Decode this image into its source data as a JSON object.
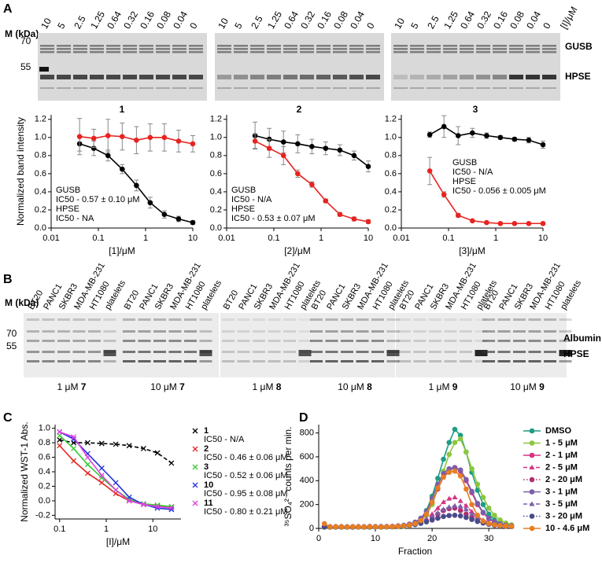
{
  "panel_labels": [
    "A",
    "B",
    "C",
    "D"
  ],
  "gel_A": {
    "marker_title": "M (kDa)",
    "markers": [
      "70",
      "55"
    ],
    "concentrations": [
      "10",
      "5",
      "2.5",
      "1.25",
      "0.64",
      "0.32",
      "0.16",
      "0.08",
      "0.04",
      "0"
    ],
    "unit": "[I]/μM",
    "bands": [
      "GUSB",
      "HPSE"
    ],
    "compounds": [
      "1",
      "2",
      "3"
    ]
  },
  "gel_B": {
    "marker_title": "M (kDa)",
    "markers": [
      "70",
      "55"
    ],
    "lanes": [
      "BT20",
      "PANC1",
      "SKBR3",
      "MDA-MB-231",
      "HT1080",
      "platelets"
    ],
    "bands": [
      "Albumin",
      "HPSE"
    ],
    "captions": [
      {
        "dose": "1 μM",
        "compound": "7"
      },
      {
        "dose": "10 μM",
        "compound": "7"
      },
      {
        "dose": "1 μM",
        "compound": "8"
      },
      {
        "dose": "10 μM",
        "compound": "8"
      },
      {
        "dose": "1 μM",
        "compound": "9"
      },
      {
        "dose": "10 μM",
        "compound": "9"
      }
    ]
  },
  "chart_data": [
    {
      "type": "line",
      "y_label": "Normalized band intensity",
      "x_label": "[1]/μM",
      "xlog": true,
      "xlim": [
        0.01,
        10
      ],
      "xticks": [
        0.01,
        0.1,
        1,
        10
      ],
      "ylim": [
        0,
        1.25
      ],
      "yticks": [
        {
          "value": 0,
          "label": "0.0"
        },
        0.2,
        0.4,
        0.6,
        0.8,
        {
          "value": 1,
          "label": "1.0"
        },
        1.2
      ],
      "legend": "lower left",
      "x": [
        0.04,
        0.08,
        0.16,
        0.32,
        0.64,
        1.25,
        2.5,
        5,
        10
      ],
      "series": [
        {
          "name": "GUSB",
          "label": "IC50 - 0.57 ± 0.10 μM",
          "color": "#000000",
          "marker": "circle",
          "values": [
            0.93,
            0.88,
            0.8,
            0.65,
            0.47,
            0.28,
            0.15,
            0.1,
            0.06
          ],
          "errors": [
            0.08,
            0.08,
            0.06,
            0.05,
            0.06,
            0.06,
            0.04,
            0.03,
            0.02
          ]
        },
        {
          "name": "HPSE",
          "label": "IC50 - NA",
          "color": "#e8231f",
          "marker": "circle",
          "values": [
            1.01,
            0.99,
            1.02,
            1.01,
            0.97,
            1.0,
            1.0,
            0.96,
            0.93
          ],
          "errors": [
            0.2,
            0.1,
            0.18,
            0.15,
            0.15,
            0.15,
            0.15,
            0.12,
            0.09
          ]
        }
      ]
    },
    {
      "type": "line",
      "x_label": "[2]/μM",
      "xlog": true,
      "xlim": [
        0.01,
        10
      ],
      "xticks": [
        0.01,
        0.1,
        1,
        10
      ],
      "ylim": [
        0,
        1.25
      ],
      "yticks": [
        {
          "value": 0,
          "label": "0.0"
        },
        0.2,
        0.4,
        0.6,
        0.8,
        {
          "value": 1,
          "label": "1.0"
        },
        1.2
      ],
      "legend": "lower left",
      "x": [
        0.04,
        0.08,
        0.16,
        0.32,
        0.64,
        1.25,
        2.5,
        5,
        10
      ],
      "series": [
        {
          "name": "GUSB",
          "label": "IC50 - N/A",
          "color": "#000000",
          "marker": "circle",
          "values": [
            1.02,
            0.98,
            0.95,
            0.93,
            0.9,
            0.88,
            0.86,
            0.8,
            0.68
          ],
          "errors": [
            0.15,
            0.12,
            0.12,
            0.1,
            0.08,
            0.07,
            0.06,
            0.05,
            0.06
          ]
        },
        {
          "name": "HPSE",
          "label": "IC50 - 0.53 ± 0.07 μM",
          "color": "#e8231f",
          "marker": "circle",
          "values": [
            0.96,
            0.88,
            0.8,
            0.6,
            0.48,
            0.3,
            0.15,
            0.1,
            0.07
          ],
          "errors": [
            0.08,
            0.1,
            0.1,
            0.04,
            0.03,
            0.02,
            0.02,
            0.02,
            0.02
          ]
        }
      ]
    },
    {
      "type": "line",
      "x_label": "[3]/μM",
      "xlog": true,
      "xlim": [
        0.01,
        10
      ],
      "xticks": [
        0.01,
        0.1,
        1,
        10
      ],
      "ylim": [
        0,
        1.25
      ],
      "yticks": [
        {
          "value": 0,
          "label": "0.0"
        },
        0.2,
        0.4,
        0.6,
        0.8,
        {
          "value": 1,
          "label": "1.0"
        },
        1.2
      ],
      "legend": "center right",
      "x": [
        0.04,
        0.08,
        0.16,
        0.32,
        0.64,
        1.25,
        2.5,
        5,
        10
      ],
      "series": [
        {
          "name": "GUSB",
          "label": "IC50 - N/A",
          "color": "#000000",
          "marker": "circle",
          "values": [
            1.03,
            1.12,
            1.02,
            1.05,
            1.02,
            1.0,
            0.98,
            0.97,
            0.92
          ],
          "errors": [
            0.03,
            0.12,
            0.1,
            0.05,
            0.03,
            0.02,
            0.02,
            0.03,
            0.04
          ]
        },
        {
          "name": "HPSE",
          "label": "IC50 - 0.056 ± 0.005 μM",
          "color": "#e8231f",
          "marker": "circle",
          "values": [
            0.63,
            0.37,
            0.14,
            0.08,
            0.06,
            0.05,
            0.05,
            0.05,
            0.05
          ],
          "errors": [
            0.15,
            0.03,
            0.02,
            0.01,
            0.01,
            0.01,
            0.01,
            0.01,
            0.01
          ]
        }
      ]
    },
    {
      "type": "line",
      "y_label": "Normalized WST-1 Abs.",
      "x_label": "[I]/μM",
      "xlog": true,
      "xlim": [
        0.08,
        40
      ],
      "xticks": [
        0.1,
        1,
        10
      ],
      "ylim": [
        -0.25,
        1.05
      ],
      "yticks": [
        -0.2,
        {
          "value": 0,
          "label": "0.0"
        },
        0.2,
        0.4,
        0.6,
        0.8,
        {
          "value": 1,
          "label": "1.0"
        }
      ],
      "legend": "outside right",
      "x": [
        0.1,
        0.2,
        0.4,
        0.8,
        1.6,
        3.1,
        6.3,
        12.5,
        25
      ],
      "series": [
        {
          "name": "1",
          "label": "IC50 - N/A",
          "color": "#000000",
          "marker": "cross",
          "dash": "dashed",
          "values": [
            0.84,
            0.8,
            0.8,
            0.79,
            0.78,
            0.76,
            0.72,
            0.66,
            0.52
          ]
        },
        {
          "name": "2",
          "label": "IC50 - 0.46 ± 0.06 μM",
          "color": "#e8231f",
          "marker": "cross",
          "values": [
            0.76,
            0.55,
            0.38,
            0.25,
            0.1,
            0.0,
            -0.05,
            -0.07,
            -0.08
          ]
        },
        {
          "name": "3",
          "label": "IC50 - 0.52 ± 0.06 μM",
          "color": "#33cc33",
          "marker": "cross",
          "values": [
            0.9,
            0.72,
            0.5,
            0.32,
            0.15,
            0.02,
            -0.04,
            -0.06,
            -0.08
          ]
        },
        {
          "name": "10",
          "label": "IC50 - 0.95 ± 0.08 μM",
          "color": "#2233dd",
          "marker": "cross",
          "values": [
            0.95,
            0.85,
            0.65,
            0.45,
            0.25,
            0.05,
            -0.05,
            -0.1,
            -0.12
          ]
        },
        {
          "name": "11",
          "label": "IC50 - 0.80 ± 0.21 μM",
          "color": "#e040e0",
          "marker": "cross",
          "values": [
            0.95,
            0.88,
            0.6,
            0.35,
            0.15,
            0.0,
            -0.05,
            -0.08,
            -0.1
          ]
        }
      ]
    },
    {
      "type": "line",
      "y_label": "³⁵SO₄²⁻ counts per min.",
      "x_label": "Fraction",
      "xlog": false,
      "xlim": [
        0,
        34
      ],
      "xticks": [
        0,
        10,
        20,
        30
      ],
      "ylim": [
        0,
        870
      ],
      "yticks": [
        0,
        200,
        400,
        600,
        800
      ],
      "legend": "outside right",
      "x": [
        1,
        2,
        3,
        4,
        5,
        6,
        7,
        8,
        9,
        10,
        11,
        12,
        13,
        14,
        15,
        16,
        17,
        18,
        19,
        20,
        21,
        22,
        23,
        24,
        25,
        26,
        27,
        28,
        29,
        30,
        31,
        32,
        33,
        34
      ],
      "series": [
        {
          "name": "DMSO",
          "color": "#1f9c84",
          "marker": "circle",
          "values": [
            12,
            10,
            11,
            10,
            12,
            10,
            11,
            12,
            10,
            12,
            11,
            13,
            14,
            20,
            25,
            30,
            45,
            80,
            150,
            270,
            420,
            580,
            720,
            830,
            780,
            640,
            470,
            320,
            200,
            120,
            70,
            45,
            30,
            25
          ]
        },
        {
          "name": "1 - 5 μM",
          "color": "#8cc63e",
          "marker": "circle",
          "values": [
            10,
            12,
            10,
            11,
            10,
            12,
            11,
            10,
            12,
            11,
            10,
            12,
            13,
            15,
            18,
            22,
            35,
            60,
            110,
            200,
            330,
            480,
            620,
            720,
            750,
            640,
            500,
            370,
            260,
            170,
            110,
            70,
            45,
            30
          ]
        },
        {
          "name": "2 - 1 μM",
          "color": "#d63384",
          "marker": "circle",
          "values": [
            15,
            12,
            14,
            13,
            12,
            14,
            13,
            12,
            14,
            15,
            13,
            14,
            16,
            20,
            25,
            35,
            50,
            80,
            120,
            220,
            330,
            430,
            490,
            510,
            480,
            400,
            300,
            200,
            130,
            80,
            50,
            35,
            25,
            20
          ]
        },
        {
          "name": "2 - 5 μM",
          "color": "#d63384",
          "marker": "triangle",
          "dash": "dashed",
          "values": [
            20,
            15,
            14,
            16,
            15,
            14,
            16,
            15,
            17,
            16,
            15,
            17,
            18,
            22,
            28,
            35,
            45,
            60,
            80,
            120,
            170,
            220,
            250,
            260,
            230,
            190,
            140,
            100,
            70,
            50,
            35,
            25,
            20,
            18
          ]
        },
        {
          "name": "2 - 20 μM",
          "color": "#b0306e",
          "marker": "circle",
          "dash": "dotted",
          "values": [
            15,
            14,
            13,
            15,
            14,
            13,
            15,
            14,
            16,
            15,
            14,
            16,
            17,
            20,
            24,
            30,
            38,
            50,
            65,
            90,
            120,
            150,
            165,
            170,
            150,
            120,
            90,
            70,
            50,
            35,
            28,
            22,
            18,
            16
          ]
        },
        {
          "name": "3 - 1 μM",
          "color": "#7b5ea7",
          "marker": "circle",
          "values": [
            14,
            13,
            15,
            14,
            13,
            15,
            14,
            13,
            15,
            14,
            16,
            15,
            17,
            21,
            26,
            36,
            52,
            85,
            140,
            250,
            370,
            460,
            500,
            510,
            490,
            410,
            310,
            210,
            135,
            85,
            55,
            38,
            27,
            22
          ]
        },
        {
          "name": "3 - 5 μM",
          "color": "#7b5ea7",
          "marker": "triangle",
          "dash": "dashed",
          "values": [
            18,
            14,
            15,
            14,
            16,
            15,
            14,
            16,
            15,
            14,
            16,
            15,
            17,
            20,
            25,
            30,
            40,
            55,
            75,
            100,
            130,
            160,
            180,
            190,
            185,
            160,
            120,
            90,
            65,
            45,
            32,
            25,
            20,
            18
          ]
        },
        {
          "name": "3 - 20 μM",
          "color": "#4a4a8a",
          "marker": "circle",
          "dash": "dotted",
          "values": [
            12,
            11,
            13,
            12,
            11,
            13,
            12,
            11,
            13,
            12,
            11,
            13,
            14,
            17,
            20,
            25,
            32,
            42,
            55,
            70,
            85,
            100,
            108,
            110,
            105,
            92,
            75,
            58,
            45,
            34,
            26,
            20,
            17,
            15
          ]
        },
        {
          "name": "10 - 4.6 μM",
          "color": "#e67e22",
          "marker": "circle",
          "values": [
            40,
            12,
            14,
            13,
            12,
            14,
            13,
            12,
            14,
            13,
            12,
            14,
            15,
            18,
            22,
            28,
            40,
            65,
            120,
            220,
            340,
            430,
            470,
            480,
            440,
            330,
            200,
            110,
            60,
            40,
            30,
            24,
            20,
            18
          ]
        }
      ]
    }
  ]
}
